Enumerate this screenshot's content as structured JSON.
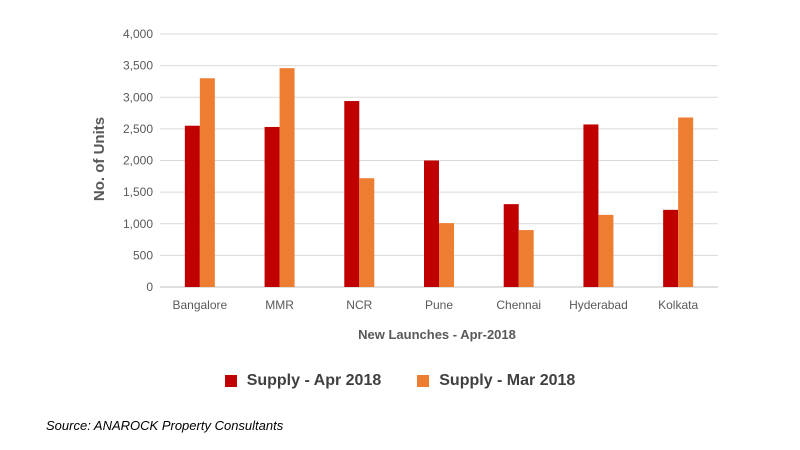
{
  "chart_data": {
    "type": "bar",
    "categories": [
      "Bangalore",
      "MMR",
      "NCR",
      "Pune",
      "Chennai",
      "Hyderabad",
      "Kolkata"
    ],
    "series": [
      {
        "name": "Supply - Apr 2018",
        "color": "#C00000",
        "values": [
          2550,
          2530,
          2940,
          2000,
          1310,
          2570,
          1220
        ]
      },
      {
        "name": "Supply - Mar 2018",
        "color": "#ED7D31",
        "values": [
          3300,
          3460,
          1720,
          1010,
          900,
          1140,
          2680
        ]
      }
    ],
    "ylabel": "No. of Units",
    "xlabel": "New Launches - Apr-2018",
    "ylim": [
      0,
      4000
    ],
    "yticks": [
      "0",
      "500",
      "1,000",
      "1,500",
      "2,000",
      "2,500",
      "3,000",
      "3,500",
      "4,000"
    ],
    "grid": true,
    "legend_position": "bottom"
  },
  "source": "Source: ANAROCK Property Consultants"
}
